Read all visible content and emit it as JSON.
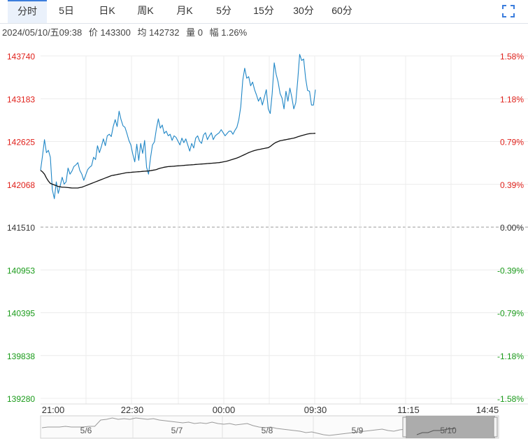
{
  "tabs": [
    {
      "label": "分时",
      "active": true
    },
    {
      "label": "5日"
    },
    {
      "label": "日K"
    },
    {
      "label": "周K"
    },
    {
      "label": "月K"
    },
    {
      "label": "5分"
    },
    {
      "label": "15分"
    },
    {
      "label": "30分"
    },
    {
      "label": "60分"
    }
  ],
  "icons": {
    "fullscreen": "fullscreen-expand-icon"
  },
  "info": {
    "datetime": "2024/05/10/五09:38",
    "price_label": "价",
    "price": "143300",
    "avg_label": "均",
    "avg": "142732",
    "vol_label": "量",
    "vol": "0",
    "chg_label": "幅",
    "chg": "1.26%"
  },
  "colors": {
    "up": "#e0211b",
    "down": "#1a9b1a",
    "price_line": "#1f86c6",
    "avg_line": "#111111",
    "grid": "#ececec",
    "tab_active_bg": "#eaf1fb",
    "tab_active_border": "#3b7ddd"
  },
  "chart_data": {
    "type": "line",
    "base": 141510,
    "ylim": [
      139280,
      143740
    ],
    "y_ticks": [
      "143740",
      "143183",
      "142625",
      "142068",
      "141510",
      "140953",
      "140395",
      "139838",
      "139280"
    ],
    "pct_ticks": [
      "1.58%",
      "1.18%",
      "0.79%",
      "0.39%",
      "0.00%",
      "-0.39%",
      "-0.79%",
      "-1.18%",
      "-1.58%"
    ],
    "x_ticks": [
      "21:00",
      "22:30",
      "00:00",
      "09:30",
      "11:15",
      "14:45"
    ],
    "series": [
      {
        "key": "price",
        "values": [
          142250,
          142440,
          142650,
          142480,
          142510,
          142420,
          142000,
          141880,
          142100,
          141950,
          142050,
          142160,
          142070,
          142100,
          142280,
          142200,
          142240,
          142300,
          142320,
          142350,
          142250,
          142200,
          142120,
          142190,
          142260,
          142290,
          142310,
          142420,
          142390,
          142570,
          142480,
          142560,
          142660,
          142570,
          142700,
          142720,
          142690,
          142820,
          142910,
          142820,
          143020,
          142910,
          142830,
          142810,
          142730,
          142640,
          142580,
          142460,
          142360,
          142590,
          142380,
          142600,
          142470,
          142640,
          142290,
          142200,
          142410,
          142580,
          142620,
          142790,
          142920,
          142800,
          142840,
          142730,
          142760,
          142700,
          142720,
          142640,
          142700,
          142680,
          142630,
          142580,
          142670,
          142610,
          142660,
          142580,
          142500,
          142600,
          142540,
          142670,
          142700,
          142630,
          142600,
          142710,
          142740,
          142650,
          142700,
          142740,
          142650,
          142700,
          142720,
          142740,
          142780,
          142740,
          142700,
          142730,
          142760,
          142760,
          142720,
          142770,
          142810,
          142910,
          143080,
          143420,
          143580,
          143450,
          143470,
          143350,
          143400,
          143300,
          143230,
          143150,
          143200,
          143100,
          143200,
          143300,
          143050,
          142990,
          143250,
          143650,
          143500,
          143400,
          143250,
          143190,
          143050,
          143280,
          143150,
          143320,
          143200,
          143050,
          143130,
          143420,
          143760,
          143680,
          143700,
          143450,
          143290,
          143280,
          143100,
          143100,
          143300
        ],
        "line_style": "blue"
      },
      {
        "key": "avg",
        "values": [
          142250,
          142230,
          142200,
          142150,
          142110,
          142080,
          142070,
          142060,
          142050,
          142040,
          142035,
          142030,
          142030,
          142028,
          142025,
          142022,
          142020,
          142020,
          142020,
          142020,
          142025,
          142030,
          142040,
          142050,
          142060,
          142070,
          142080,
          142090,
          142100,
          142110,
          142120,
          142130,
          142140,
          142150,
          142160,
          142170,
          142180,
          142185,
          142190,
          142195,
          142200,
          142205,
          142210,
          142215,
          142220,
          142222,
          142224,
          142226,
          142228,
          142230,
          142232,
          142234,
          142236,
          142238,
          142240,
          142242,
          142245,
          142250,
          142255,
          142260,
          142270,
          142278,
          142284,
          142290,
          142295,
          142298,
          142300,
          142302,
          142304,
          142306,
          142308,
          142310,
          142312,
          142314,
          142316,
          142318,
          142320,
          142322,
          142324,
          142326,
          142328,
          142330,
          142332,
          142334,
          142336,
          142338,
          142340,
          142342,
          142344,
          142346,
          142348,
          142350,
          142355,
          142360,
          142365,
          142370,
          142378,
          142386,
          142394,
          142402,
          142410,
          142420,
          142432,
          142444,
          142456,
          142468,
          142480,
          142490,
          142500,
          142508,
          142515,
          142520,
          142525,
          142530,
          142535,
          142540,
          142545,
          142560,
          142580,
          142600,
          142615,
          142625,
          142635,
          142640,
          142645,
          142650,
          142655,
          142660,
          142665,
          142670,
          142678,
          142686,
          142694,
          142702,
          142710,
          142716,
          142722,
          142728,
          142730,
          142731,
          142732
        ],
        "line_style": "black"
      }
    ],
    "navigator": {
      "labels": [
        "5/6",
        "5/7",
        "5/8",
        "5/9",
        "5/10"
      ]
    }
  }
}
